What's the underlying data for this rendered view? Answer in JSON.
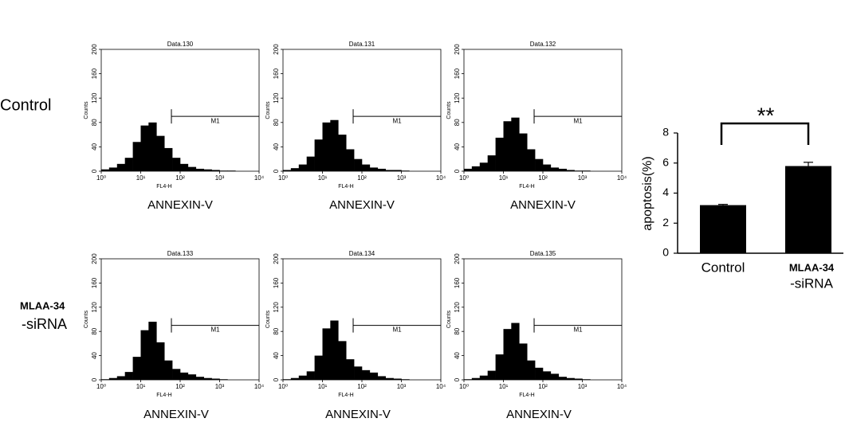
{
  "figure": {
    "row_labels": [
      [
        "Control"
      ],
      [
        "MLAA-34",
        "-siRNA"
      ]
    ]
  },
  "chart_data": [
    {
      "type": "histogram",
      "title": "Data.130",
      "xlabel": "FL4-H",
      "ylabel": "Counts",
      "caption": "ANNEXIN-V",
      "log_x": true,
      "color": "#000000",
      "bins": [
        1,
        1.58,
        2.51,
        3.98,
        6.31,
        10,
        15.8,
        25.1,
        39.8,
        63.1,
        100,
        158,
        251,
        398,
        631,
        1000,
        1585,
        2512,
        3981,
        6310,
        10000
      ],
      "values": [
        3,
        6,
        12,
        22,
        48,
        75,
        80,
        58,
        38,
        22,
        12,
        7,
        4,
        3,
        2,
        1,
        1,
        0,
        0,
        0
      ],
      "xlim": [
        1,
        10000
      ],
      "xticks": [
        {
          "value": 1,
          "label": "10⁰"
        },
        {
          "value": 10,
          "label": "10¹"
        },
        {
          "value": 100,
          "label": "10²"
        },
        {
          "value": 1000,
          "label": "10³"
        },
        {
          "value": 10000,
          "label": "10⁴"
        }
      ],
      "ylim": [
        0,
        200
      ],
      "yticks": [
        0,
        40,
        80,
        120,
        160,
        200
      ],
      "marker": {
        "label": "M1",
        "range": [
          60,
          10000
        ],
        "y": 90
      }
    },
    {
      "type": "histogram",
      "title": "Data.131",
      "xlabel": "FL4-H",
      "ylabel": "Counts",
      "caption": "ANNEXIN-V",
      "log_x": true,
      "color": "#000000",
      "bins": [
        1,
        1.58,
        2.51,
        3.98,
        6.31,
        10,
        15.8,
        25.1,
        39.8,
        63.1,
        100,
        158,
        251,
        398,
        631,
        1000,
        1585,
        2512,
        3981,
        6310,
        10000
      ],
      "values": [
        2,
        5,
        11,
        24,
        52,
        80,
        84,
        60,
        36,
        20,
        11,
        6,
        4,
        2,
        2,
        1,
        0,
        0,
        0,
        0
      ],
      "xlim": [
        1,
        10000
      ],
      "xticks": [
        {
          "value": 1,
          "label": "10⁰"
        },
        {
          "value": 10,
          "label": "10¹"
        },
        {
          "value": 100,
          "label": "10²"
        },
        {
          "value": 1000,
          "label": "10³"
        },
        {
          "value": 10000,
          "label": "10⁴"
        }
      ],
      "ylim": [
        0,
        200
      ],
      "yticks": [
        0,
        40,
        80,
        120,
        160,
        200
      ],
      "marker": {
        "label": "M1",
        "range": [
          60,
          10000
        ],
        "y": 90
      }
    },
    {
      "type": "histogram",
      "title": "Data.132",
      "xlabel": "FL4-H",
      "ylabel": "Counts",
      "caption": "ANNEXIN-V",
      "log_x": true,
      "color": "#000000",
      "bins": [
        1,
        1.58,
        2.51,
        3.98,
        6.31,
        10,
        15.8,
        25.1,
        39.8,
        63.1,
        100,
        158,
        251,
        398,
        631,
        1000,
        1585,
        2512,
        3981,
        6310,
        10000
      ],
      "values": [
        4,
        8,
        14,
        26,
        55,
        82,
        88,
        62,
        36,
        20,
        11,
        6,
        4,
        2,
        1,
        1,
        0,
        0,
        0,
        0
      ],
      "xlim": [
        1,
        10000
      ],
      "xticks": [
        {
          "value": 1,
          "label": "10⁰"
        },
        {
          "value": 10,
          "label": "10¹"
        },
        {
          "value": 100,
          "label": "10²"
        },
        {
          "value": 1000,
          "label": "10³"
        },
        {
          "value": 10000,
          "label": "10⁴"
        }
      ],
      "ylim": [
        0,
        200
      ],
      "yticks": [
        0,
        40,
        80,
        120,
        160,
        200
      ],
      "marker": {
        "label": "M1",
        "range": [
          60,
          10000
        ],
        "y": 90
      }
    },
    {
      "type": "histogram",
      "title": "Data.133",
      "xlabel": "FL4-H",
      "ylabel": "Counts",
      "caption": "ANNEXIN-V",
      "log_x": true,
      "color": "#000000",
      "bins": [
        1,
        1.58,
        2.51,
        3.98,
        6.31,
        10,
        15.8,
        25.1,
        39.8,
        63.1,
        100,
        158,
        251,
        398,
        631,
        1000,
        1585,
        2512,
        3981,
        6310,
        10000
      ],
      "values": [
        1,
        3,
        6,
        13,
        38,
        82,
        96,
        62,
        32,
        18,
        12,
        9,
        5,
        3,
        2,
        1,
        0,
        0,
        0,
        0
      ],
      "xlim": [
        1,
        10000
      ],
      "xticks": [
        {
          "value": 1,
          "label": "10⁰"
        },
        {
          "value": 10,
          "label": "10¹"
        },
        {
          "value": 100,
          "label": "10²"
        },
        {
          "value": 1000,
          "label": "10³"
        },
        {
          "value": 10000,
          "label": "10⁴"
        }
      ],
      "ylim": [
        0,
        200
      ],
      "yticks": [
        0,
        40,
        80,
        120,
        160,
        200
      ],
      "marker": {
        "label": "M1",
        "range": [
          60,
          10000
        ],
        "y": 90
      }
    },
    {
      "type": "histogram",
      "title": "Data.134",
      "xlabel": "FL4-H",
      "ylabel": "Counts",
      "caption": "ANNEXIN-V",
      "log_x": true,
      "color": "#000000",
      "bins": [
        1,
        1.58,
        2.51,
        3.98,
        6.31,
        10,
        15.8,
        25.1,
        39.8,
        63.1,
        100,
        158,
        251,
        398,
        631,
        1000,
        1585,
        2512,
        3981,
        6310,
        10000
      ],
      "values": [
        1,
        3,
        7,
        14,
        40,
        85,
        98,
        64,
        34,
        22,
        16,
        12,
        6,
        3,
        2,
        1,
        0,
        0,
        0,
        0
      ],
      "xlim": [
        1,
        10000
      ],
      "xticks": [
        {
          "value": 1,
          "label": "10⁰"
        },
        {
          "value": 10,
          "label": "10¹"
        },
        {
          "value": 100,
          "label": "10²"
        },
        {
          "value": 1000,
          "label": "10³"
        },
        {
          "value": 10000,
          "label": "10⁴"
        }
      ],
      "ylim": [
        0,
        200
      ],
      "yticks": [
        0,
        40,
        80,
        120,
        160,
        200
      ],
      "marker": {
        "label": "M1",
        "range": [
          60,
          10000
        ],
        "y": 90
      }
    },
    {
      "type": "histogram",
      "title": "Data.135",
      "xlabel": "FL4-H",
      "ylabel": "Counts",
      "caption": "ANNEXIN-V",
      "log_x": true,
      "color": "#000000",
      "bins": [
        1,
        1.58,
        2.51,
        3.98,
        6.31,
        10,
        15.8,
        25.1,
        39.8,
        63.1,
        100,
        158,
        251,
        398,
        631,
        1000,
        1585,
        2512,
        3981,
        6310,
        10000
      ],
      "values": [
        1,
        3,
        7,
        15,
        42,
        84,
        94,
        60,
        32,
        20,
        14,
        10,
        5,
        3,
        2,
        1,
        0,
        0,
        0,
        0
      ],
      "xlim": [
        1,
        10000
      ],
      "xticks": [
        {
          "value": 1,
          "label": "10⁰"
        },
        {
          "value": 10,
          "label": "10¹"
        },
        {
          "value": 100,
          "label": "10²"
        },
        {
          "value": 1000,
          "label": "10³"
        },
        {
          "value": 10000,
          "label": "10⁴"
        }
      ],
      "ylim": [
        0,
        200
      ],
      "yticks": [
        0,
        40,
        80,
        120,
        160,
        200
      ],
      "marker": {
        "label": "M1",
        "range": [
          60,
          10000
        ],
        "y": 90
      }
    },
    {
      "type": "bar",
      "ylabel": "apoptosis(%)",
      "categories": [
        [
          "Control"
        ],
        [
          "MLAA-34",
          "-siRNA"
        ]
      ],
      "values": [
        3.2,
        5.8
      ],
      "errors": [
        0.05,
        0.25
      ],
      "color": "#000000",
      "ylim": [
        0,
        8
      ],
      "yticks": [
        0,
        2,
        4,
        6,
        8
      ],
      "annotation": "**"
    }
  ]
}
